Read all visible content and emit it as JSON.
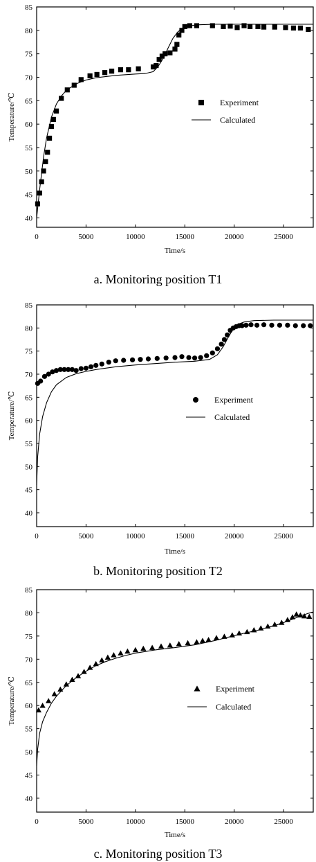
{
  "chart_data": [
    {
      "type": "scatter",
      "caption": "a. Monitoring position T1",
      "xlabel": "Time/s",
      "ylabel": "Temperature/℃",
      "xlim": [
        0,
        28000
      ],
      "ylim": [
        38,
        85
      ],
      "xticks": [
        0,
        5000,
        10000,
        15000,
        20000,
        25000
      ],
      "yticks": [
        40,
        45,
        50,
        55,
        60,
        65,
        70,
        75,
        80,
        85
      ],
      "grid": false,
      "legend_position": "right-middle",
      "marker": "square",
      "series": [
        {
          "name": "Experiment",
          "kind": "markers",
          "x": [
            100,
            300,
            500,
            700,
            900,
            1100,
            1300,
            1500,
            1700,
            2000,
            2500,
            3100,
            3800,
            4500,
            5400,
            6100,
            6900,
            7600,
            8500,
            9300,
            10300,
            11800,
            12100,
            12400,
            12700,
            13000,
            13500,
            14000,
            14200,
            14400,
            14700,
            15000,
            15500,
            16200,
            17800,
            18900,
            19600,
            20300,
            21000,
            21600,
            22400,
            23000,
            24100,
            25200,
            26000,
            26700,
            27500
          ],
          "y": [
            43,
            45.3,
            47.7,
            50,
            52,
            54,
            57,
            59.5,
            61,
            62.8,
            65.5,
            67.3,
            68.3,
            69.5,
            70.3,
            70.6,
            71,
            71.3,
            71.6,
            71.6,
            71.8,
            72.2,
            72.5,
            73.8,
            74.5,
            75,
            75.2,
            76,
            77,
            79,
            80,
            80.8,
            81,
            81,
            81,
            80.8,
            80.9,
            80.6,
            81,
            80.8,
            80.8,
            80.7,
            80.7,
            80.6,
            80.5,
            80.5,
            80.2
          ]
        },
        {
          "name": "Calculated",
          "kind": "line",
          "x": [
            0,
            300,
            700,
            1000,
            1500,
            2000,
            2500,
            3000,
            4000,
            5000,
            6000,
            8000,
            10000,
            11000,
            11800,
            12300,
            12800,
            13300,
            13800,
            14300,
            14800,
            15500,
            16500,
            18000,
            20000,
            22000,
            25000,
            28000
          ],
          "y": [
            40,
            46,
            53,
            57,
            61.5,
            64.3,
            66,
            67.2,
            68.6,
            69.4,
            69.9,
            70.4,
            70.7,
            70.8,
            71.2,
            72.3,
            74,
            76.2,
            78.3,
            79.7,
            80.5,
            81,
            81.2,
            81.3,
            81.3,
            81.3,
            81.3,
            81.3
          ]
        }
      ]
    },
    {
      "type": "scatter",
      "caption": "b. Monitoring position T2",
      "xlabel": "Time/s",
      "ylabel": "Temperature/℃",
      "xlim": [
        0,
        28000
      ],
      "ylim": [
        37,
        85
      ],
      "xticks": [
        0,
        5000,
        10000,
        15000,
        20000,
        25000
      ],
      "yticks": [
        40,
        45,
        50,
        55,
        60,
        65,
        70,
        75,
        80,
        85
      ],
      "grid": false,
      "legend_position": "center-right",
      "marker": "circle",
      "series": [
        {
          "name": "Experiment",
          "kind": "markers",
          "x": [
            100,
            400,
            800,
            1200,
            1600,
            2000,
            2400,
            2800,
            3200,
            3600,
            4000,
            4500,
            5000,
            5500,
            6000,
            6600,
            7300,
            8000,
            8800,
            9700,
            10500,
            11300,
            12200,
            13100,
            14000,
            14700,
            15400,
            16000,
            16600,
            17200,
            17800,
            18300,
            18700,
            19000,
            19300,
            19600,
            19900,
            20200,
            20500,
            20800,
            21200,
            21700,
            22300,
            23000,
            23800,
            24600,
            25400,
            26200,
            27000,
            27700
          ],
          "y": [
            68,
            68.5,
            69.5,
            70,
            70.5,
            70.8,
            71,
            71,
            71,
            71,
            70.8,
            71.2,
            71.3,
            71.6,
            71.9,
            72.2,
            72.6,
            72.9,
            73,
            73.1,
            73.2,
            73.3,
            73.4,
            73.5,
            73.6,
            73.8,
            73.6,
            73.5,
            73.6,
            74,
            74.6,
            75.5,
            76.5,
            77.5,
            78.5,
            79.5,
            80,
            80.3,
            80.5,
            80.5,
            80.6,
            80.7,
            80.6,
            80.7,
            80.6,
            80.6,
            80.6,
            80.5,
            80.5,
            80.5
          ]
        },
        {
          "name": "Calculated",
          "kind": "line",
          "x": [
            0,
            100,
            300,
            600,
            1000,
            1500,
            2000,
            3000,
            4000,
            5000,
            6000,
            8000,
            10000,
            12000,
            14000,
            16000,
            17500,
            18300,
            18900,
            19400,
            19900,
            20400,
            21000,
            22000,
            24000,
            26000,
            28000
          ],
          "y": [
            46,
            52,
            57,
            60.8,
            63.8,
            66.2,
            67.7,
            69.3,
            70.1,
            70.6,
            71,
            71.6,
            72,
            72.3,
            72.6,
            72.8,
            73.2,
            74.2,
            76,
            78,
            79.8,
            80.8,
            81.3,
            81.6,
            81.7,
            81.7,
            81.7
          ]
        }
      ]
    },
    {
      "type": "scatter",
      "caption": "c. Monitoring position T3",
      "xlabel": "Time/s",
      "ylabel": "Temperature/℃",
      "xlim": [
        0,
        28000
      ],
      "ylim": [
        37,
        85
      ],
      "xticks": [
        0,
        5000,
        10000,
        15000,
        20000,
        25000
      ],
      "yticks": [
        40,
        45,
        50,
        55,
        60,
        65,
        70,
        75,
        80,
        85
      ],
      "grid": false,
      "legend_position": "center-right",
      "marker": "triangle",
      "series": [
        {
          "name": "Experiment",
          "kind": "markers",
          "x": [
            200,
            600,
            1200,
            1800,
            2400,
            3000,
            3600,
            4200,
            4800,
            5400,
            6000,
            6600,
            7200,
            7800,
            8500,
            9200,
            10000,
            10800,
            11700,
            12600,
            13500,
            14400,
            15300,
            16200,
            16800,
            17400,
            18200,
            19000,
            19800,
            20500,
            21300,
            22000,
            22700,
            23400,
            24100,
            24800,
            25400,
            25900,
            26300,
            26700,
            27100,
            27600
          ],
          "y": [
            59,
            60,
            61,
            62.5,
            63.5,
            64.6,
            65.6,
            66.4,
            67.3,
            68.2,
            69,
            69.8,
            70.4,
            70.9,
            71.3,
            71.7,
            72,
            72.3,
            72.5,
            72.8,
            73,
            73.3,
            73.5,
            73.7,
            74,
            74.2,
            74.6,
            74.9,
            75.2,
            75.6,
            75.9,
            76.3,
            76.7,
            77.1,
            77.5,
            77.9,
            78.5,
            79.1,
            79.7,
            79.5,
            79.3,
            79.2
          ]
        },
        {
          "name": "Calculated",
          "kind": "line",
          "x": [
            0,
            100,
            300,
            600,
            1000,
            1500,
            2000,
            3000,
            4000,
            5000,
            6000,
            7000,
            8000,
            9000,
            10000,
            12000,
            14000,
            16000,
            18000,
            19500,
            21000,
            22500,
            24000,
            25000,
            26000,
            26800,
            27500,
            28000
          ],
          "y": [
            47,
            50.5,
            54,
            56.5,
            58.5,
            60.5,
            62,
            64.3,
            66,
            67.4,
            68.6,
            69.5,
            70.2,
            70.8,
            71.3,
            72,
            72.5,
            73.1,
            74,
            74.8,
            75.6,
            76.3,
            77.2,
            77.9,
            78.7,
            79.4,
            79.9,
            80.2
          ]
        }
      ]
    }
  ]
}
